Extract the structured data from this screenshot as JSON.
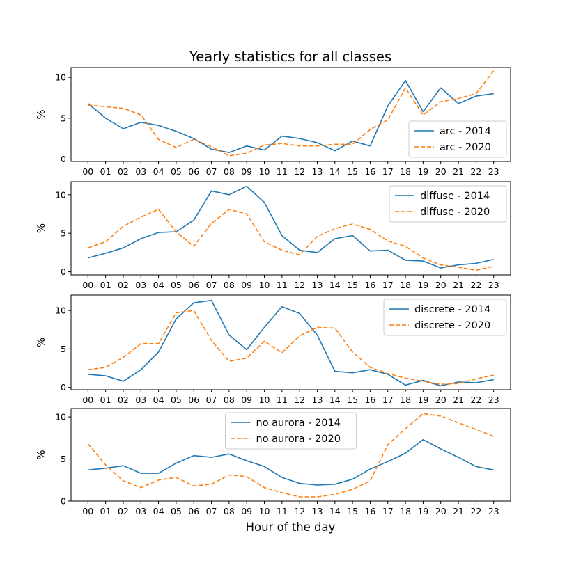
{
  "title": "Yearly statistics for all classes",
  "xlabel": "Hour of the day",
  "colors": {
    "s2014": "#1f77b4",
    "s2020": "#ff7f0e"
  },
  "chart_data": [
    {
      "type": "line",
      "ylabel": "%",
      "x": [
        "00",
        "01",
        "02",
        "03",
        "04",
        "05",
        "06",
        "07",
        "08",
        "09",
        "10",
        "11",
        "12",
        "13",
        "14",
        "15",
        "16",
        "17",
        "18",
        "19",
        "20",
        "21",
        "22",
        "23"
      ],
      "ylim": [
        -0.3,
        11.2
      ],
      "yticks": [
        0,
        5,
        10
      ],
      "legend_placement": "lower-right",
      "series": [
        {
          "name": "arc - 2014",
          "style": "solid",
          "values": [
            6.8,
            5.0,
            3.7,
            4.5,
            4.1,
            3.4,
            2.5,
            1.2,
            0.8,
            1.6,
            1.1,
            2.8,
            2.5,
            2.0,
            1.0,
            2.2,
            1.6,
            6.5,
            9.6,
            5.8,
            8.7,
            6.8,
            7.7,
            8.0
          ]
        },
        {
          "name": "arc - 2020",
          "style": "dashed",
          "values": [
            6.6,
            6.4,
            6.2,
            5.4,
            2.4,
            1.4,
            2.4,
            1.5,
            0.4,
            0.7,
            1.7,
            1.9,
            1.6,
            1.6,
            1.8,
            1.8,
            3.6,
            4.8,
            8.7,
            5.4,
            7.0,
            7.4,
            8.0,
            10.8
          ]
        }
      ]
    },
    {
      "type": "line",
      "ylabel": "%",
      "x": [
        "00",
        "01",
        "02",
        "03",
        "04",
        "05",
        "06",
        "07",
        "08",
        "09",
        "10",
        "11",
        "12",
        "13",
        "14",
        "15",
        "16",
        "17",
        "18",
        "19",
        "20",
        "21",
        "22",
        "23"
      ],
      "ylim": [
        -0.4,
        11.7
      ],
      "yticks": [
        0,
        5,
        10
      ],
      "legend_placement": "upper-right",
      "series": [
        {
          "name": "diffuse - 2014",
          "style": "solid",
          "values": [
            1.8,
            2.4,
            3.1,
            4.3,
            5.1,
            5.2,
            6.7,
            10.5,
            10.0,
            11.1,
            9.0,
            4.7,
            2.8,
            2.5,
            4.3,
            4.7,
            2.7,
            2.8,
            1.5,
            1.4,
            0.5,
            0.9,
            1.1,
            1.6
          ]
        },
        {
          "name": "diffuse - 2020",
          "style": "dashed",
          "values": [
            3.1,
            3.9,
            5.9,
            7.1,
            8.1,
            5.2,
            3.3,
            6.3,
            8.1,
            7.5,
            3.9,
            2.8,
            2.2,
            4.6,
            5.6,
            6.2,
            5.5,
            4.0,
            3.3,
            1.8,
            0.9,
            0.6,
            0.2,
            0.7
          ]
        }
      ]
    },
    {
      "type": "line",
      "ylabel": "%",
      "x": [
        "00",
        "01",
        "02",
        "03",
        "04",
        "05",
        "06",
        "07",
        "08",
        "09",
        "10",
        "11",
        "12",
        "13",
        "14",
        "15",
        "16",
        "17",
        "18",
        "19",
        "20",
        "21",
        "22",
        "23"
      ],
      "ylim": [
        -0.3,
        12.0
      ],
      "yticks": [
        0,
        5,
        10
      ],
      "legend_placement": "upper-right",
      "series": [
        {
          "name": "discrete - 2014",
          "style": "solid",
          "values": [
            1.7,
            1.5,
            0.8,
            2.3,
            4.6,
            8.9,
            11.0,
            11.3,
            6.8,
            4.9,
            7.8,
            10.5,
            9.6,
            6.8,
            2.1,
            1.9,
            2.3,
            1.7,
            0.3,
            0.9,
            0.2,
            0.7,
            0.6,
            1.0
          ]
        },
        {
          "name": "discrete - 2020",
          "style": "dashed",
          "values": [
            2.3,
            2.6,
            3.9,
            5.7,
            5.7,
            9.7,
            10.0,
            6.1,
            3.4,
            3.8,
            6.0,
            4.5,
            6.7,
            7.8,
            7.7,
            4.6,
            2.6,
            1.8,
            1.2,
            0.8,
            0.4,
            0.5,
            1.1,
            1.6
          ]
        }
      ]
    },
    {
      "type": "line",
      "ylabel": "%",
      "x": [
        "00",
        "01",
        "02",
        "03",
        "04",
        "05",
        "06",
        "07",
        "08",
        "09",
        "10",
        "11",
        "12",
        "13",
        "14",
        "15",
        "16",
        "17",
        "18",
        "19",
        "20",
        "21",
        "22",
        "23"
      ],
      "ylim": [
        0,
        11.0
      ],
      "yticks": [
        0,
        5,
        10
      ],
      "legend_placement": "upper-center",
      "series": [
        {
          "name": "no aurora - 2014",
          "style": "solid",
          "values": [
            3.7,
            3.9,
            4.2,
            3.3,
            3.3,
            4.5,
            5.4,
            5.2,
            5.6,
            4.8,
            4.1,
            2.8,
            2.1,
            1.9,
            2.0,
            2.6,
            3.8,
            4.7,
            5.7,
            7.3,
            6.2,
            5.2,
            4.1,
            3.7
          ]
        },
        {
          "name": "no aurora - 2020",
          "style": "dashed",
          "values": [
            6.8,
            4.3,
            2.4,
            1.6,
            2.5,
            2.8,
            1.8,
            2.0,
            3.1,
            2.9,
            1.6,
            1.0,
            0.5,
            0.5,
            0.8,
            1.4,
            2.4,
            6.7,
            8.6,
            10.4,
            10.1,
            9.3,
            8.5,
            7.7
          ]
        }
      ]
    }
  ]
}
